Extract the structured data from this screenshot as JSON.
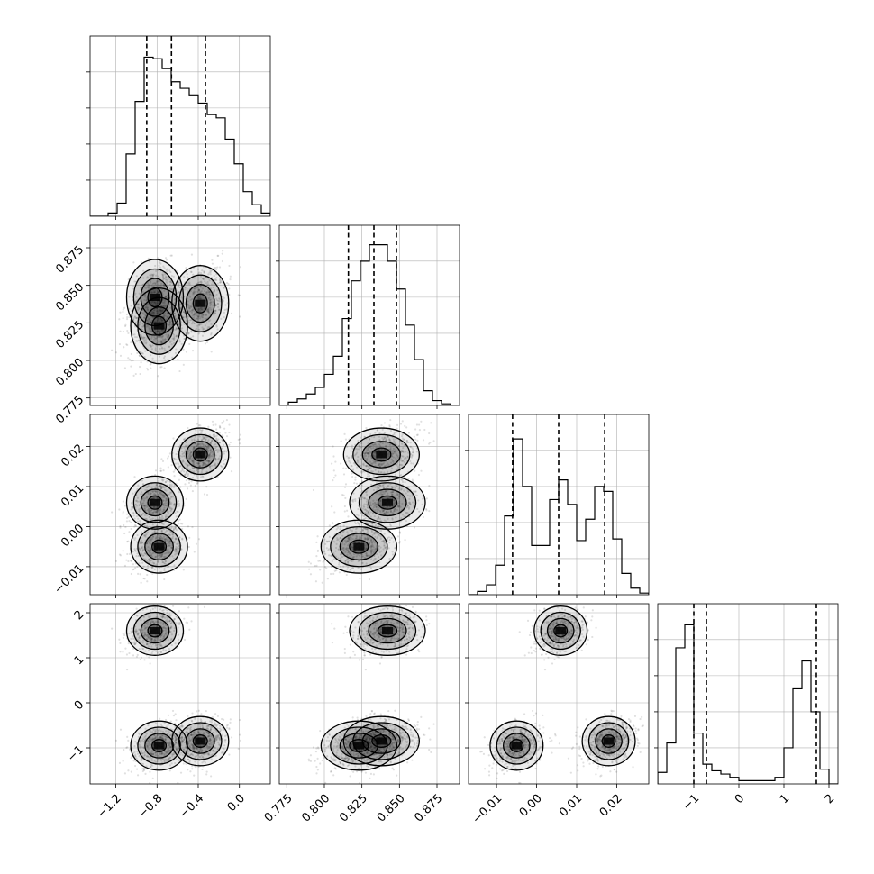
{
  "chart_data": {
    "type": "corner",
    "grid": true,
    "parameters": [
      {
        "range": [
          -1.45,
          0.3
        ],
        "ticks": [
          -1.2,
          -0.8,
          -0.4,
          0.0
        ],
        "tick_labels": [
          "−1.2",
          "−0.8",
          "−0.4",
          "0.0"
        ]
      },
      {
        "range": [
          0.77,
          0.89
        ],
        "ticks": [
          0.775,
          0.8,
          0.825,
          0.85,
          0.875
        ],
        "tick_labels": [
          "0.775",
          "0.800",
          "0.825",
          "0.850",
          "0.875"
        ]
      },
      {
        "range": [
          -0.017,
          0.028
        ],
        "ticks": [
          -0.01,
          0.0,
          0.01,
          0.02
        ],
        "tick_labels": [
          "−0.01",
          "0.00",
          "0.01",
          "0.02"
        ]
      },
      {
        "range": [
          -1.8,
          2.2
        ],
        "ticks": [
          -1,
          0,
          1,
          2
        ],
        "tick_labels": [
          "−1",
          "0",
          "1",
          "2"
        ]
      }
    ],
    "histograms": [
      {
        "edges_range": [
          -1.45,
          0.3
        ],
        "counts": [
          0,
          0,
          0.02,
          0.08,
          0.38,
          0.7,
          0.97,
          0.96,
          0.9,
          0.82,
          0.78,
          0.74,
          0.69,
          0.62,
          0.6,
          0.47,
          0.32,
          0.15,
          0.07,
          0.02
        ],
        "quantiles": [
          -0.9,
          -0.66,
          -0.33
        ]
      },
      {
        "edges_range": [
          0.77,
          0.89
        ],
        "counts": [
          0,
          0.02,
          0.04,
          0.07,
          0.11,
          0.19,
          0.3,
          0.53,
          0.76,
          0.88,
          0.98,
          0.98,
          0.88,
          0.71,
          0.49,
          0.28,
          0.09,
          0.03,
          0.01,
          0
        ],
        "quantiles": [
          0.816,
          0.833,
          0.848
        ]
      },
      {
        "edges_range": [
          -0.017,
          0.028
        ],
        "counts": [
          0,
          0.02,
          0.06,
          0.18,
          0.48,
          0.95,
          0.66,
          0.3,
          0.3,
          0.58,
          0.7,
          0.55,
          0.33,
          0.46,
          0.66,
          0.63,
          0.34,
          0.13,
          0.04,
          0.01
        ],
        "quantiles": [
          -0.006,
          0.0055,
          0.017
        ]
      },
      {
        "edges_range": [
          -1.8,
          2.2
        ],
        "counts": [
          0.07,
          0.25,
          0.83,
          0.97,
          0.31,
          0.12,
          0.08,
          0.06,
          0.04,
          0.02,
          0.02,
          0.02,
          0.02,
          0.04,
          0.22,
          0.58,
          0.75,
          0.44,
          0.09,
          0
        ],
        "quantiles": [
          -1.0,
          -0.72,
          1.72
        ]
      }
    ],
    "modes": [
      {
        "p": [
          -0.82,
          0.842,
          0.006,
          1.6
        ],
        "w": 0.33
      },
      {
        "p": [
          -0.78,
          0.823,
          -0.005,
          -0.95
        ],
        "w": 0.33
      },
      {
        "p": [
          -0.38,
          0.838,
          0.018,
          -0.85
        ],
        "w": 0.34
      }
    ]
  }
}
